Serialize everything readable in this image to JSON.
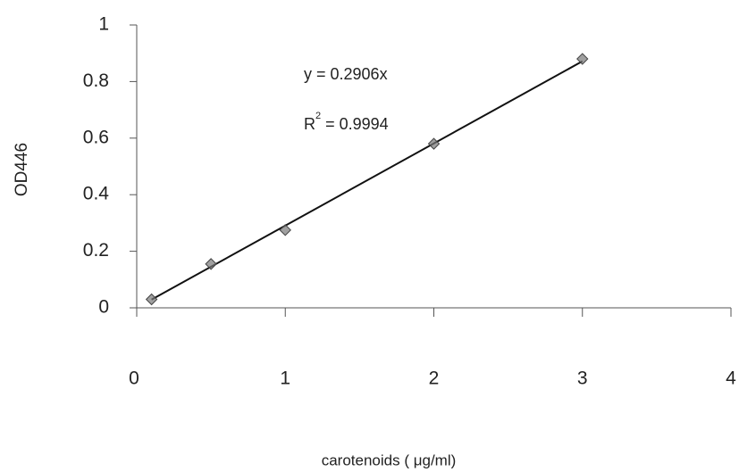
{
  "chart_data": {
    "type": "scatter",
    "x_label": "carotenoids ( μg/ml)",
    "y_label": "OD446",
    "x": [
      0.1,
      0.5,
      1,
      2,
      3
    ],
    "values": [
      0.03,
      0.155,
      0.275,
      0.58,
      0.88
    ],
    "color": "#777777",
    "xlim": [
      0,
      4
    ],
    "xticks": [
      0,
      1,
      2,
      3,
      4
    ],
    "ylim": [
      0,
      1
    ],
    "yticks": [
      0,
      {
        "value": 0.2,
        "label": "0.2"
      },
      {
        "value": 0.4,
        "label": "0.4"
      },
      {
        "value": 0.6,
        "label": "0.6"
      },
      {
        "value": 0.8,
        "label": "0.8"
      },
      1
    ],
    "trendline": {
      "slope": 0.2906,
      "color": "#111111"
    },
    "equation": "y = 0.2906x",
    "r_squared": {
      "base": "R",
      "sup": "2",
      "text": " = 0.9994"
    }
  }
}
